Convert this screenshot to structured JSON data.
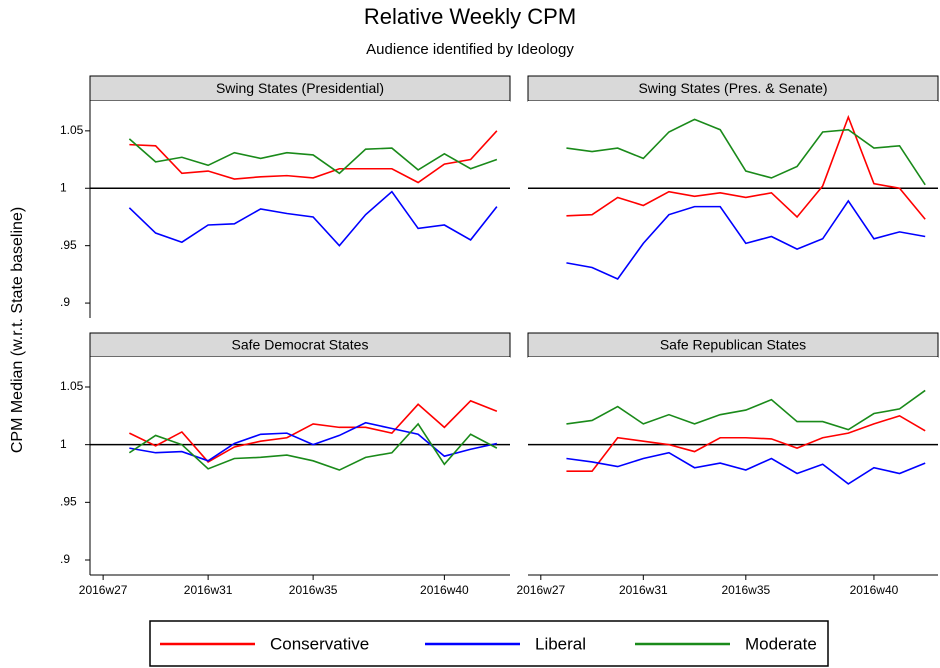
{
  "title": "Relative Weekly CPM",
  "subtitle": "Audience identified by Ideology",
  "y_label": "CPM Median (w.r.t. State baseline)",
  "chart_data": [
    {
      "type": "line",
      "title": "Swing States (Presidential)",
      "x": [
        28,
        29,
        30,
        31,
        32,
        33,
        34,
        35,
        36,
        37,
        38,
        39,
        40,
        41,
        42
      ],
      "xlim": [
        26.5,
        42.5
      ],
      "ylim": [
        0.887,
        1.076
      ],
      "yticks": [
        {
          "value": 0.9,
          "label": ".9"
        },
        {
          "value": 0.95,
          "label": ".95"
        },
        1,
        1.05
      ],
      "yline": 1,
      "series": [
        {
          "name": "Conservative",
          "color": "#ff0000",
          "values": [
            1.038,
            1.037,
            1.013,
            1.015,
            1.008,
            1.01,
            1.011,
            1.009,
            1.017,
            1.017,
            1.017,
            1.005,
            1.021,
            1.025,
            1.05
          ]
        },
        {
          "name": "Liberal",
          "color": "#0000ff",
          "values": [
            0.983,
            0.961,
            0.953,
            0.968,
            0.969,
            0.982,
            0.978,
            0.975,
            0.95,
            0.977,
            0.997,
            0.965,
            0.968,
            0.955,
            0.984
          ]
        },
        {
          "name": "Moderate",
          "color": "#1a8a1a",
          "values": [
            1.043,
            1.023,
            1.027,
            1.02,
            1.031,
            1.026,
            1.031,
            1.029,
            1.013,
            1.034,
            1.035,
            1.016,
            1.03,
            1.017,
            1.025
          ]
        }
      ]
    },
    {
      "type": "line",
      "title": "Swing States (Pres. & Senate)",
      "x": [
        28,
        29,
        30,
        31,
        32,
        33,
        34,
        35,
        36,
        37,
        38,
        39,
        40,
        41,
        42
      ],
      "xlim": [
        26.5,
        42.5
      ],
      "ylim": [
        0.887,
        1.076
      ],
      "yline": 1,
      "series": [
        {
          "name": "Conservative",
          "color": "#ff0000",
          "values": [
            0.976,
            0.977,
            0.992,
            0.985,
            0.997,
            0.993,
            0.996,
            0.992,
            0.996,
            0.975,
            1.002,
            1.062,
            1.004,
            1.0,
            0.973
          ]
        },
        {
          "name": "Liberal",
          "color": "#0000ff",
          "values": [
            0.935,
            0.931,
            0.921,
            0.952,
            0.977,
            0.984,
            0.984,
            0.952,
            0.958,
            0.947,
            0.956,
            0.989,
            0.956,
            0.962,
            0.958
          ]
        },
        {
          "name": "Moderate",
          "color": "#1a8a1a",
          "values": [
            1.035,
            1.032,
            1.035,
            1.026,
            1.049,
            1.06,
            1.051,
            1.015,
            1.009,
            1.019,
            1.049,
            1.051,
            1.035,
            1.037,
            1.003
          ]
        }
      ]
    },
    {
      "type": "line",
      "title": "Safe Democrat States",
      "x": [
        28,
        29,
        30,
        31,
        32,
        33,
        34,
        35,
        36,
        37,
        38,
        39,
        40,
        41,
        42
      ],
      "xlim": [
        26.5,
        42.5
      ],
      "xticks": [
        {
          "value": 27,
          "label": "2016w27"
        },
        {
          "value": 31,
          "label": "2016w31"
        },
        {
          "value": 35,
          "label": "2016w35"
        },
        {
          "value": 40,
          "label": "2016w40"
        }
      ],
      "ylim": [
        0.887,
        1.076
      ],
      "yticks": [
        {
          "value": 0.9,
          "label": ".9"
        },
        {
          "value": 0.95,
          "label": ".95"
        },
        1,
        1.05
      ],
      "yline": 1,
      "series": [
        {
          "name": "Conservative",
          "color": "#ff0000",
          "values": [
            1.01,
            0.999,
            1.011,
            0.985,
            0.998,
            1.003,
            1.006,
            1.018,
            1.015,
            1.015,
            1.01,
            1.035,
            1.015,
            1.038,
            1.029
          ]
        },
        {
          "name": "Liberal",
          "color": "#0000ff",
          "values": [
            0.997,
            0.993,
            0.994,
            0.986,
            1.001,
            1.009,
            1.01,
            1.0,
            1.008,
            1.019,
            1.014,
            1.009,
            0.99,
            0.996,
            1.001
          ]
        },
        {
          "name": "Moderate",
          "color": "#1a8a1a",
          "values": [
            0.993,
            1.008,
            1.0,
            0.979,
            0.988,
            0.989,
            0.991,
            0.986,
            0.978,
            0.989,
            0.993,
            1.018,
            0.983,
            1.009,
            0.997
          ]
        }
      ]
    },
    {
      "type": "line",
      "title": "Safe Republican States",
      "x": [
        28,
        29,
        30,
        31,
        32,
        33,
        34,
        35,
        36,
        37,
        38,
        39,
        40,
        41,
        42
      ],
      "xlim": [
        26.5,
        42.5
      ],
      "xticks": [
        {
          "value": 27,
          "label": "2016w27"
        },
        {
          "value": 31,
          "label": "2016w31"
        },
        {
          "value": 35,
          "label": "2016w35"
        },
        {
          "value": 40,
          "label": "2016w40"
        }
      ],
      "ylim": [
        0.887,
        1.076
      ],
      "yline": 1,
      "series": [
        {
          "name": "Conservative",
          "color": "#ff0000",
          "values": [
            0.977,
            0.977,
            1.006,
            1.003,
            1.0,
            0.994,
            1.006,
            1.006,
            1.005,
            0.997,
            1.006,
            1.01,
            1.018,
            1.025,
            1.012
          ]
        },
        {
          "name": "Liberal",
          "color": "#0000ff",
          "values": [
            0.988,
            0.985,
            0.981,
            0.988,
            0.993,
            0.98,
            0.984,
            0.978,
            0.988,
            0.975,
            0.983,
            0.966,
            0.98,
            0.975,
            0.984
          ]
        },
        {
          "name": "Moderate",
          "color": "#1a8a1a",
          "values": [
            1.018,
            1.021,
            1.033,
            1.018,
            1.026,
            1.018,
            1.026,
            1.03,
            1.039,
            1.02,
            1.02,
            1.013,
            1.027,
            1.031,
            1.047
          ]
        }
      ]
    }
  ]
}
